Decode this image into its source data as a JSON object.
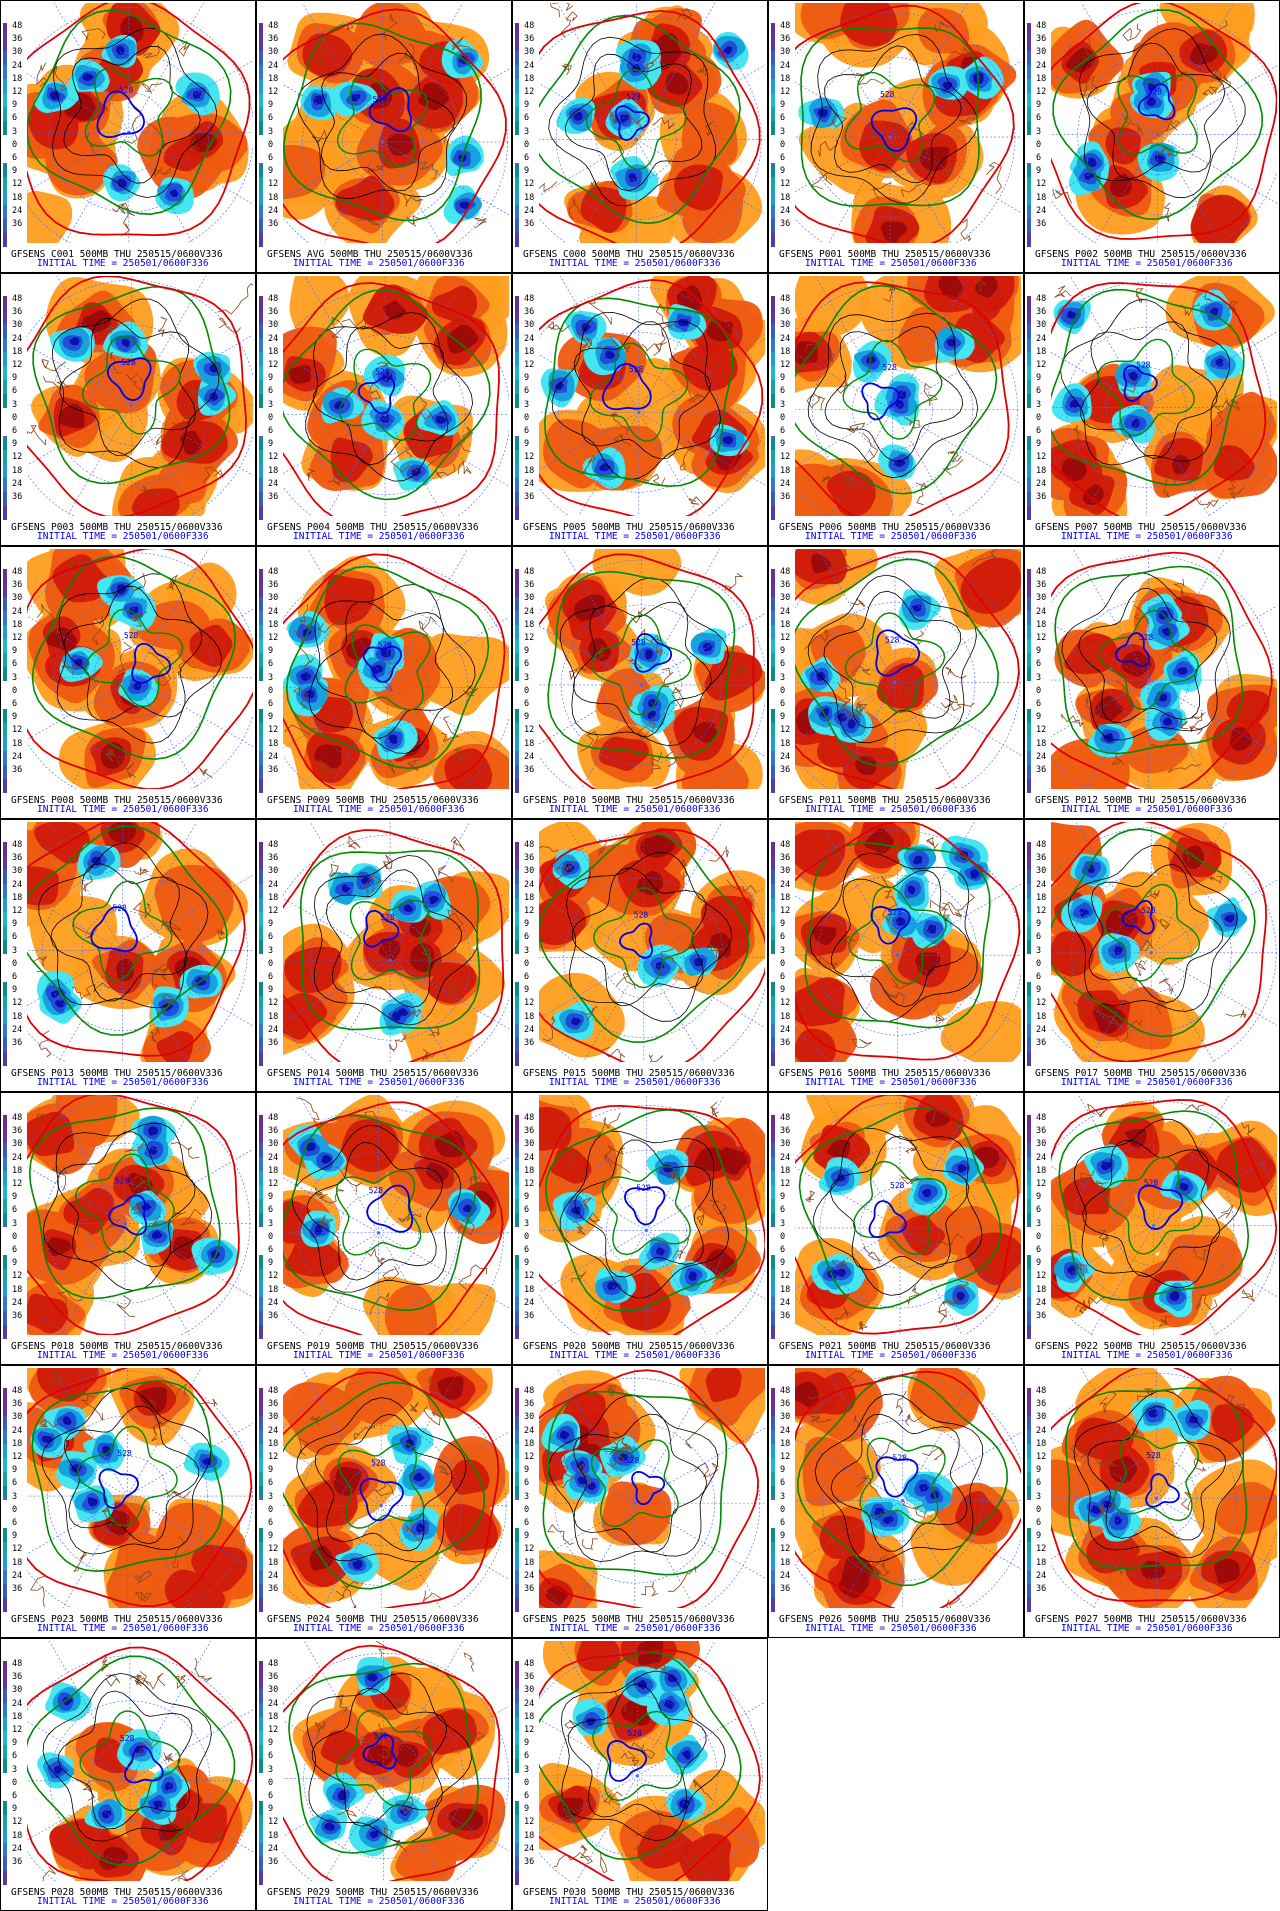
{
  "colors": {
    "warm_light": "#ff9d1f",
    "warm_mid": "#ee5a12",
    "warm_dark": "#cf1a0a",
    "warm_darkest": "#9a0a0a",
    "cold_light": "#46e6f0",
    "cold_mid": "#16a3dd",
    "cold_dark": "#1f4fd8",
    "cold_darkest": "#0b10a8",
    "contour_red": "#e00000",
    "contour_green": "#008a00",
    "contour_blue": "#0000e0",
    "contour_black": "#000000",
    "coast": "#8b4513",
    "grid_lines": "#4466ff",
    "caption_blue": "#0000ff"
  },
  "scale_labels": [
    "48",
    "36",
    "30",
    "24",
    "18",
    "12",
    "9",
    "6",
    "3",
    "0",
    "6",
    "9",
    "12",
    "18",
    "24",
    "36"
  ],
  "contour_label": "528",
  "init_line": "INITIAL TIME = 250501/0600F336",
  "panels": [
    {
      "caption": "GFSENS C001 500MB THU 250515/0600V336"
    },
    {
      "caption": "GFSENS AVG 500MB THU 250515/0600V336"
    },
    {
      "caption": "GFSENS C000 500MB THU 250515/0600V336"
    },
    {
      "caption": "GFSENS P001 500MB THU 250515/0600V336"
    },
    {
      "caption": "GFSENS P002 500MB THU 250515/0600V336"
    },
    {
      "caption": "GFSENS P003 500MB THU 250515/0600V336"
    },
    {
      "caption": "GFSENS P004 500MB THU 250515/0600V336"
    },
    {
      "caption": "GFSENS P005 500MB THU 250515/0600V336"
    },
    {
      "caption": "GFSENS P006 500MB THU 250515/0600V336"
    },
    {
      "caption": "GFSENS P007 500MB THU 250515/0600V336"
    },
    {
      "caption": "GFSENS P008 500MB THU 250515/0600V336"
    },
    {
      "caption": "GFSENS P009 500MB THU 250515/0600V336"
    },
    {
      "caption": "GFSENS P010 500MB THU 250515/0600V336"
    },
    {
      "caption": "GFSENS P011 500MB THU 250515/0600V336"
    },
    {
      "caption": "GFSENS P012 500MB THU 250515/0600V336"
    },
    {
      "caption": "GFSENS P013 500MB THU 250515/0600V336"
    },
    {
      "caption": "GFSENS P014 500MB THU 250515/0600V336"
    },
    {
      "caption": "GFSENS P015 500MB THU 250515/0600V336"
    },
    {
      "caption": "GFSENS P016 500MB THU 250515/0600V336"
    },
    {
      "caption": "GFSENS P017 500MB THU 250515/0600V336"
    },
    {
      "caption": "GFSENS P018 500MB THU 250515/0600V336"
    },
    {
      "caption": "GFSENS P019 500MB THU 250515/0600V336"
    },
    {
      "caption": "GFSENS P020 500MB THU 250515/0600V336"
    },
    {
      "caption": "GFSENS P021 500MB THU 250515/0600V336"
    },
    {
      "caption": "GFSENS P022 500MB THU 250515/0600V336"
    },
    {
      "caption": "GFSENS P023 500MB THU 250515/0600V336"
    },
    {
      "caption": "GFSENS P024 500MB THU 250515/0600V336"
    },
    {
      "caption": "GFSENS P025 500MB THU 250515/0600V336"
    },
    {
      "caption": "GFSENS P026 500MB THU 250515/0600V336"
    },
    {
      "caption": "GFSENS P027 500MB THU 250515/0600V336"
    },
    {
      "caption": "GFSENS P028 500MB THU 250515/0600V336"
    },
    {
      "caption": "GFSENS P029 500MB THU 250515/0600V336"
    },
    {
      "caption": "GFSENS P030 500MB THU 250515/0600V336"
    }
  ]
}
